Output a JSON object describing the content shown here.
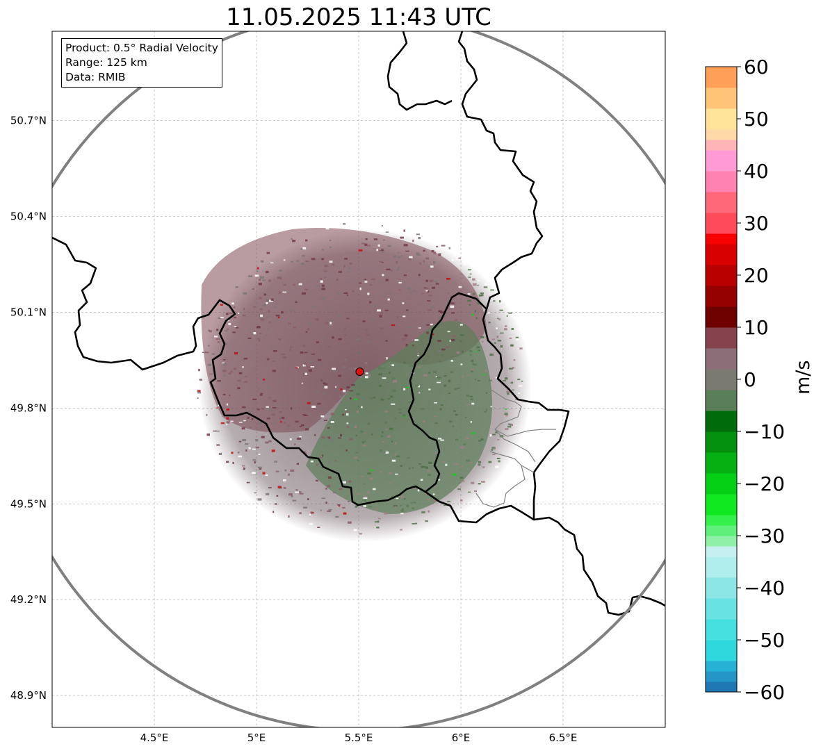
{
  "title": "11.05.2025 11:43 UTC",
  "info_box": {
    "product": "Product: 0.5° Radial Velocity",
    "range": "Range: 125 km",
    "data": "Data: RMIB"
  },
  "map": {
    "lon_range": [
      4.0,
      7.0
    ],
    "lat_range": [
      48.8,
      50.98
    ],
    "radar_site": {
      "lon": 5.505,
      "lat": 49.914
    },
    "range_km": 125,
    "x_ticks": [
      {
        "value": 4.5,
        "label": "4.5°E"
      },
      {
        "value": 5.0,
        "label": "5°E"
      },
      {
        "value": 5.5,
        "label": "5.5°E"
      },
      {
        "value": 6.0,
        "label": "6°E"
      },
      {
        "value": 6.5,
        "label": "6.5°E"
      }
    ],
    "y_ticks": [
      {
        "value": 48.9,
        "label": "48.9°N"
      },
      {
        "value": 49.2,
        "label": "49.2°N"
      },
      {
        "value": 49.5,
        "label": "49.5°N"
      },
      {
        "value": 49.8,
        "label": "49.8°N"
      },
      {
        "value": 50.1,
        "label": "50.1°N"
      },
      {
        "value": 50.4,
        "label": "50.4°N"
      },
      {
        "value": 50.7,
        "label": "50.7°N"
      }
    ],
    "grid": true,
    "colors": {
      "border": "#000000",
      "subdivision": "#808080",
      "range_ring": "#808080",
      "site": "#dd1111"
    }
  },
  "colorbar": {
    "label": "m/s",
    "range": [
      -60,
      60
    ],
    "ticks": [
      "60",
      "50",
      "40",
      "30",
      "20",
      "10",
      "0",
      "−10",
      "−20",
      "−30",
      "−40",
      "−50",
      "−60"
    ],
    "stops": [
      {
        "from": -60,
        "to": -58,
        "color": "#1f77b4"
      },
      {
        "from": -58,
        "to": -56,
        "color": "#2596c8"
      },
      {
        "from": -56,
        "to": -54,
        "color": "#26b2d4"
      },
      {
        "from": -54,
        "to": -50,
        "color": "#2ed8dc"
      },
      {
        "from": -50,
        "to": -46,
        "color": "#45dfe0"
      },
      {
        "from": -46,
        "to": -42,
        "color": "#68e2e3"
      },
      {
        "from": -42,
        "to": -38,
        "color": "#8ce6e6"
      },
      {
        "from": -38,
        "to": -34,
        "color": "#b0eded"
      },
      {
        "from": -34,
        "to": -32,
        "color": "#c6f0f0"
      },
      {
        "from": -32,
        "to": -30,
        "color": "#8ff0a8"
      },
      {
        "from": -30,
        "to": -28,
        "color": "#5ef07a"
      },
      {
        "from": -28,
        "to": -26,
        "color": "#33f04a"
      },
      {
        "from": -26,
        "to": -22,
        "color": "#10e820"
      },
      {
        "from": -22,
        "to": -18,
        "color": "#06d016"
      },
      {
        "from": -18,
        "to": -14,
        "color": "#04b012"
      },
      {
        "from": -14,
        "to": -10,
        "color": "#02900e"
      },
      {
        "from": -10,
        "to": -6,
        "color": "#006b0a"
      },
      {
        "from": -6,
        "to": -2,
        "color": "#5a7f58"
      },
      {
        "from": -2,
        "to": 2,
        "color": "#7a7a72"
      },
      {
        "from": 2,
        "to": 6,
        "color": "#8c6e78"
      },
      {
        "from": 6,
        "to": 10,
        "color": "#84434c"
      },
      {
        "from": 10,
        "to": 14,
        "color": "#6e0000"
      },
      {
        "from": 14,
        "to": 18,
        "color": "#950000"
      },
      {
        "from": 18,
        "to": 22,
        "color": "#b80000"
      },
      {
        "from": 22,
        "to": 26,
        "color": "#d80000"
      },
      {
        "from": 26,
        "to": 28,
        "color": "#f80000"
      },
      {
        "from": 28,
        "to": 32,
        "color": "#ff4a5a"
      },
      {
        "from": 32,
        "to": 36,
        "color": "#ff6878"
      },
      {
        "from": 36,
        "to": 40,
        "color": "#ff82b0"
      },
      {
        "from": 40,
        "to": 44,
        "color": "#ff9ad4"
      },
      {
        "from": 44,
        "to": 46,
        "color": "#ffb4b8"
      },
      {
        "from": 46,
        "to": 48,
        "color": "#ffd8a8"
      },
      {
        "from": 48,
        "to": 52,
        "color": "#ffe49a"
      },
      {
        "from": 52,
        "to": 56,
        "color": "#ffc478"
      },
      {
        "from": 56,
        "to": 60,
        "color": "#ff9f58"
      }
    ]
  }
}
